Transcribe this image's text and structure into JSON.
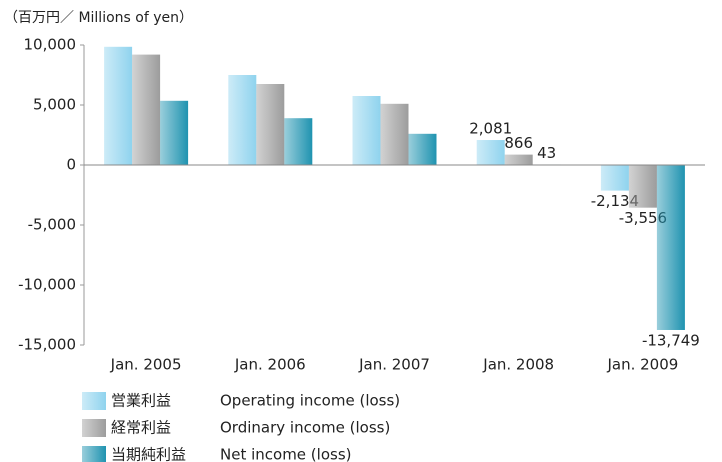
{
  "chart_data": {
    "type": "bar",
    "ylabel": "（百万円／ Millions of yen）",
    "categories": [
      "Jan. 2005",
      "Jan. 2006",
      "Jan. 2007",
      "Jan. 2008",
      "Jan. 2009"
    ],
    "series": [
      {
        "name": "Operating income (loss)",
        "name_ja": "営業利益",
        "color": "#8fd3ee",
        "values": [
          9850,
          7500,
          5750,
          2081,
          -2134
        ],
        "value_labels": [
          null,
          null,
          null,
          "2,081",
          "-2,134"
        ]
      },
      {
        "name": "Ordinary income (loss)",
        "name_ja": "経常利益",
        "color": "#9c9c9c",
        "values": [
          9200,
          6750,
          5100,
          866,
          -3556
        ],
        "value_labels": [
          null,
          null,
          null,
          "866",
          "-3,556"
        ]
      },
      {
        "name": "Net income (loss)",
        "name_ja": "当期純利益",
        "color": "#1f93b0",
        "values": [
          5350,
          3900,
          2600,
          43,
          -13749
        ],
        "value_labels": [
          null,
          null,
          null,
          "43",
          "-13,749"
        ]
      }
    ],
    "ylim": [
      -15000,
      10000
    ],
    "yticks": [
      {
        "value": 10000,
        "label": "10,000"
      },
      {
        "value": 5000,
        "label": "5,000"
      },
      0,
      {
        "value": -5000,
        "label": "-5,000"
      },
      {
        "value": -10000,
        "label": "-10,000"
      },
      {
        "value": -15000,
        "label": "-15,000"
      }
    ]
  }
}
